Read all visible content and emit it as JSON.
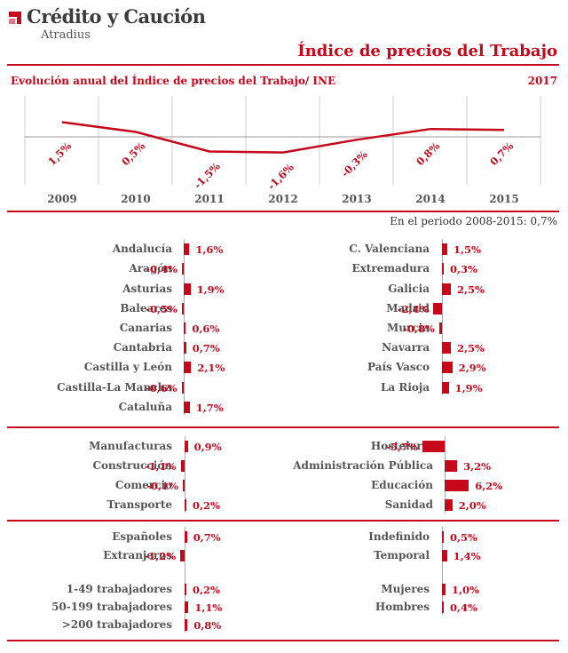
{
  "header": {
    "logo_name": "Crédito y Caución",
    "logo_sub": "Atradius",
    "page_title": "Índice de precios del Trabajo",
    "brand_color": "#c5091b"
  },
  "chart_data": [
    {
      "type": "line",
      "title": "Evolución anual del Índice de precios del Trabajo/ INE",
      "year_label": "2017",
      "categories": [
        "2009",
        "2010",
        "2011",
        "2012",
        "2013",
        "2014",
        "2015"
      ],
      "values": [
        1.5,
        0.5,
        -1.5,
        -1.6,
        -0.3,
        0.8,
        0.7
      ],
      "value_labels": [
        "1,5%",
        "0,5%",
        "-1,5%",
        "-1,6%",
        "-0,3%",
        "0,8%",
        "0,7%"
      ],
      "period_note": "En el periodo 2008-2015: 0,7%"
    },
    {
      "type": "bar",
      "orientation": "horizontal",
      "group": "regions-left",
      "categories": [
        "Andalucía",
        "Aragón",
        "Asturias",
        "Baleares",
        "Canarias",
        "Cantabria",
        "Castilla y León",
        "Castilla-La Mancha",
        "Cataluña"
      ],
      "values": [
        1.6,
        -0.4,
        1.9,
        -0.5,
        0.6,
        0.7,
        2.1,
        -0.6,
        1.7
      ],
      "value_labels": [
        "1,6%",
        "-0,4%",
        "1,9%",
        "-0,5%",
        "0,6%",
        "0,7%",
        "2,1%",
        "-0,6%",
        "1,7%"
      ]
    },
    {
      "type": "bar",
      "orientation": "horizontal",
      "group": "regions-right",
      "categories": [
        "C. Valenciana",
        "Extremadura",
        "Galicia",
        "Madrid",
        "Murcia",
        "Navarra",
        "País Vasco",
        "La Rioja"
      ],
      "values": [
        1.5,
        0.3,
        2.5,
        -2.4,
        -0.8,
        2.5,
        2.9,
        1.9
      ],
      "value_labels": [
        "1,5%",
        "0,3%",
        "2,5%",
        "-2,4%",
        "-0,8%",
        "2,5%",
        "2,9%",
        "1,9%"
      ]
    },
    {
      "type": "bar",
      "orientation": "horizontal",
      "group": "sectors-left",
      "categories": [
        "Manufacturas",
        "Construcción",
        "Comercio",
        "Transporte"
      ],
      "values": [
        0.9,
        -1.1,
        -0.1,
        0.2
      ],
      "value_labels": [
        "0,9%",
        "-1,1%",
        "-0,1%",
        "0,2%"
      ]
    },
    {
      "type": "bar",
      "orientation": "horizontal",
      "group": "sectors-right",
      "categories": [
        "Hostelería",
        "Administración Pública",
        "Educación",
        "Sanidad"
      ],
      "values": [
        -5.7,
        3.2,
        6.2,
        2.0
      ],
      "value_labels": [
        "-5,7%",
        "3,2%",
        "6,2%",
        "2,0%"
      ]
    },
    {
      "type": "bar",
      "orientation": "horizontal",
      "group": "workers-left",
      "categories": [
        "Españoles",
        "Extranjeros",
        "",
        "1-49 trabajadores",
        "50-199 trabajadores",
        ">200 trabajadores"
      ],
      "values": [
        0.7,
        -1.2,
        null,
        0.2,
        1.1,
        0.8
      ],
      "value_labels": [
        "0,7%",
        "-1,2%",
        "",
        "0,2%",
        "1,1%",
        "0,8%"
      ]
    },
    {
      "type": "bar",
      "orientation": "horizontal",
      "group": "workers-right",
      "categories": [
        "Indefinido",
        "Temporal",
        "",
        "Mujeres",
        "Hombres"
      ],
      "values": [
        0.5,
        1.4,
        null,
        1.0,
        0.4
      ],
      "value_labels": [
        "0,5%",
        "1,4%",
        "",
        "1,0%",
        "0,4%"
      ]
    }
  ]
}
